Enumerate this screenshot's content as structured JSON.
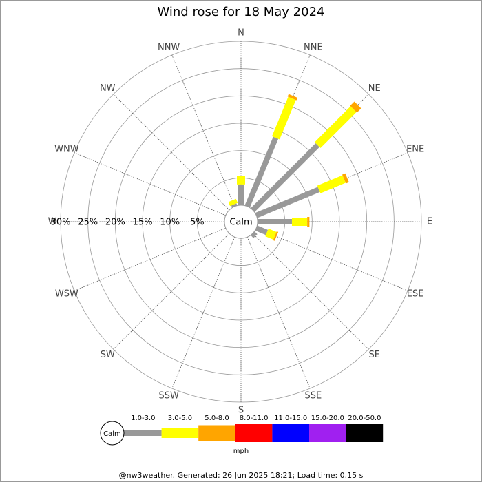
{
  "chart_data": {
    "type": "windrose",
    "title": "Wind rose for 18 May 2024",
    "calm_label": "Calm",
    "unit_label": "mph",
    "footer": "@nw3weather. Generated: 26 Jun 2025 18:21; Load time: 0.15 s",
    "categories": [
      "N",
      "NNE",
      "NE",
      "ENE",
      "E",
      "ESE",
      "SE",
      "SSE",
      "S",
      "SSW",
      "SW",
      "WSW",
      "W",
      "WNW",
      "NW",
      "NNW"
    ],
    "rlim": [
      0,
      30
    ],
    "rticks": [
      {
        "value": 5,
        "label": "5%"
      },
      {
        "value": 10,
        "label": "10%"
      },
      {
        "value": 15,
        "label": "15%"
      },
      {
        "value": 20,
        "label": "20%"
      },
      {
        "value": 25,
        "label": "25%"
      },
      {
        "value": 30,
        "label": "30%"
      }
    ],
    "series": [
      {
        "name": "1.0-3.0",
        "color": "#999999",
        "values": [
          3.8,
          13.6,
          16.8,
          12.4,
          6.3,
          2.1,
          0.7,
          0,
          0,
          0,
          0,
          0,
          0,
          0,
          0,
          0.4
        ]
      },
      {
        "name": "3.0-5.0",
        "color": "#ffff00",
        "values": [
          1.6,
          7.8,
          9.3,
          5.0,
          2.8,
          1.6,
          0,
          0,
          0,
          0,
          0,
          0,
          0,
          0,
          0,
          0.8
        ]
      },
      {
        "name": "5.0-8.0",
        "color": "#ffa500",
        "values": [
          0,
          0.5,
          1.1,
          0.6,
          0.4,
          0.3,
          0,
          0,
          0,
          0,
          0,
          0,
          0,
          0,
          0,
          0
        ]
      },
      {
        "name": "8.0-11.0",
        "color": "#ff0000",
        "values": [
          0,
          0,
          0,
          0,
          0,
          0,
          0,
          0,
          0,
          0,
          0,
          0,
          0,
          0,
          0,
          0
        ]
      },
      {
        "name": "11.0-15.0",
        "color": "#0000ff",
        "values": [
          0,
          0,
          0,
          0,
          0,
          0,
          0,
          0,
          0,
          0,
          0,
          0,
          0,
          0,
          0,
          0
        ]
      },
      {
        "name": "15.0-20.0",
        "color": "#a020f0",
        "values": [
          0,
          0,
          0,
          0,
          0,
          0,
          0,
          0,
          0,
          0,
          0,
          0,
          0,
          0,
          0,
          0
        ]
      },
      {
        "name": "20.0-50.0",
        "color": "#000000",
        "values": [
          0,
          0,
          0,
          0,
          0,
          0,
          0,
          0,
          0,
          0,
          0,
          0,
          0,
          0,
          0,
          0
        ]
      }
    ]
  }
}
